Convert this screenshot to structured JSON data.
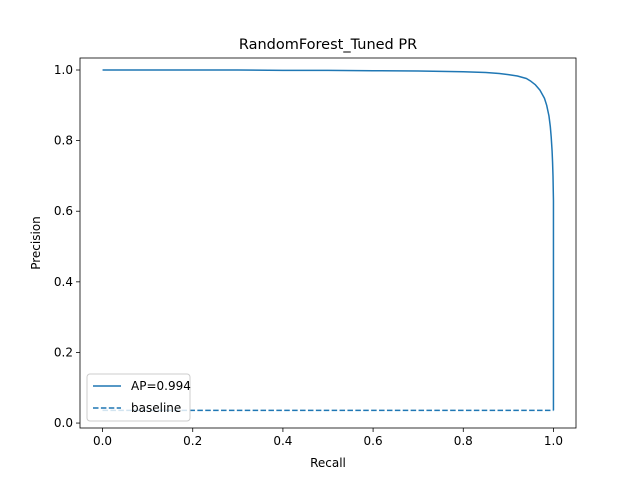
{
  "chart_data": {
    "type": "line",
    "title": "RandomForest_Tuned PR",
    "xlabel": "Recall",
    "ylabel": "Precision",
    "xlim": [
      -0.05,
      1.05
    ],
    "ylim": [
      -0.014,
      1.034
    ],
    "xticks": [
      0.0,
      0.2,
      0.4,
      0.6,
      0.8,
      1.0
    ],
    "yticks": [
      0.0,
      0.2,
      0.4,
      0.6,
      0.8,
      1.0
    ],
    "xtick_labels": [
      "0.0",
      "0.2",
      "0.4",
      "0.6",
      "0.8",
      "1.0"
    ],
    "ytick_labels": [
      "0.0",
      "0.2",
      "0.4",
      "0.6",
      "0.8",
      "1.0"
    ],
    "grid": false,
    "legend_position": "lower-left",
    "series": [
      {
        "name": "AP=0.994",
        "color": "#1f77b4",
        "style": "solid",
        "x": [
          0.0,
          0.1,
          0.2,
          0.3,
          0.4,
          0.5,
          0.6,
          0.7,
          0.75,
          0.8,
          0.85,
          0.88,
          0.9,
          0.92,
          0.94,
          0.95,
          0.96,
          0.97,
          0.98,
          0.985,
          0.99,
          0.993,
          0.995,
          0.997,
          0.998,
          0.999,
          1.0,
          1.0,
          1.0
        ],
        "y": [
          1.0,
          1.0,
          1.0,
          1.0,
          0.999,
          0.999,
          0.998,
          0.997,
          0.996,
          0.995,
          0.993,
          0.99,
          0.987,
          0.983,
          0.976,
          0.968,
          0.958,
          0.943,
          0.92,
          0.9,
          0.87,
          0.84,
          0.81,
          0.77,
          0.74,
          0.7,
          0.63,
          0.3,
          0.036
        ]
      },
      {
        "name": "baseline",
        "color": "#1f77b4",
        "style": "dashed",
        "x": [
          0.0,
          1.0
        ],
        "y": [
          0.036,
          0.036
        ]
      }
    ]
  }
}
